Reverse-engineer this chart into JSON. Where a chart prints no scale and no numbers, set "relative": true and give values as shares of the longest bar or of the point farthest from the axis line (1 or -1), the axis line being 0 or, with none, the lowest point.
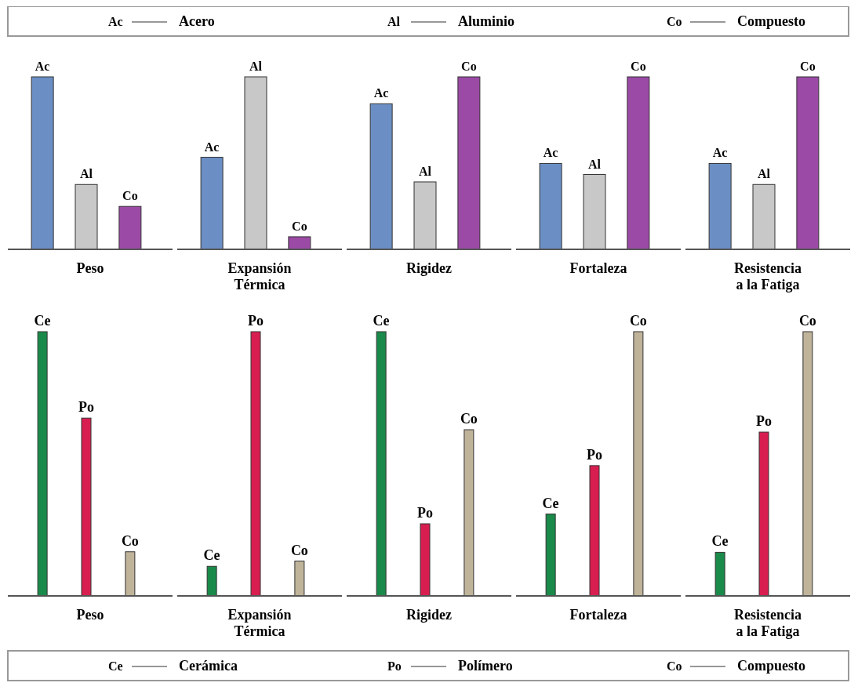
{
  "chart_data": [
    {
      "type": "other",
      "annotations": [
        "Ac",
        "Acero",
        "Al",
        "Aluminio",
        "Co",
        "Compuesto"
      ]
    },
    {
      "type": "bar",
      "relative": true,
      "xlabel": "Peso",
      "categories": [
        "Ac",
        "Al",
        "Co"
      ],
      "values": [
        1,
        0.376,
        0.249
      ],
      "colors": [
        "#6b8fc4",
        "#c8c8c8",
        "#9b4aa5"
      ]
    },
    {
      "type": "bar",
      "relative": true,
      "xlabel": "Expansión\nTérmica",
      "categories": [
        "Ac",
        "Al",
        "Co"
      ],
      "values": [
        0.534,
        1,
        0.073
      ],
      "colors": [
        "#6b8fc4",
        "#c8c8c8",
        "#9b4aa5"
      ]
    },
    {
      "type": "bar",
      "relative": true,
      "xlabel": "Rigidez",
      "categories": [
        "Ac",
        "Al",
        "Co"
      ],
      "values": [
        0.844,
        0.391,
        1
      ],
      "colors": [
        "#6b8fc4",
        "#c8c8c8",
        "#9b4aa5"
      ]
    },
    {
      "type": "bar",
      "relative": true,
      "xlabel": "Fortaleza",
      "categories": [
        "Ac",
        "Al",
        "Co"
      ],
      "values": [
        0.498,
        0.434,
        1
      ],
      "colors": [
        "#6b8fc4",
        "#c8c8c8",
        "#9b4aa5"
      ]
    },
    {
      "type": "bar",
      "relative": true,
      "xlabel": "Resistencia\na la Fatiga",
      "categories": [
        "Ac",
        "Al",
        "Co"
      ],
      "values": [
        0.498,
        0.376,
        1
      ],
      "colors": [
        "#6b8fc4",
        "#c8c8c8",
        "#9b4aa5"
      ]
    },
    {
      "type": "bar",
      "relative": true,
      "xlabel": "Peso",
      "categories": [
        "Ce",
        "Po",
        "Co"
      ],
      "values": [
        1,
        0.673,
        0.167
      ],
      "colors": [
        "#1a8a4a",
        "#d81e50",
        "#bfb39a"
      ]
    },
    {
      "type": "bar",
      "relative": true,
      "xlabel": "Expansión\nTérmica",
      "categories": [
        "Ce",
        "Po",
        "Co"
      ],
      "values": [
        0.112,
        1,
        0.132
      ],
      "colors": [
        "#1a8a4a",
        "#d81e50",
        "#bfb39a"
      ]
    },
    {
      "type": "bar",
      "relative": true,
      "xlabel": "Rigidez",
      "categories": [
        "Ce",
        "Po",
        "Co"
      ],
      "values": [
        1,
        0.273,
        0.629
      ],
      "colors": [
        "#1a8a4a",
        "#d81e50",
        "#bfb39a"
      ]
    },
    {
      "type": "bar",
      "relative": true,
      "xlabel": "Fortaleza",
      "categories": [
        "Ce",
        "Po",
        "Co"
      ],
      "values": [
        0.31,
        0.493,
        1
      ],
      "colors": [
        "#1a8a4a",
        "#d81e50",
        "#bfb39a"
      ]
    },
    {
      "type": "bar",
      "relative": true,
      "xlabel": "Resistencia\na la Fatiga",
      "categories": [
        "Ce",
        "Po",
        "Co"
      ],
      "values": [
        0.165,
        0.62,
        1
      ],
      "colors": [
        "#1a8a4a",
        "#d81e50",
        "#bfb39a"
      ]
    },
    {
      "type": "other",
      "annotations": [
        "Ce",
        "Cerámica",
        "Po",
        "Polímero",
        "Co",
        "Compuesto"
      ]
    }
  ]
}
